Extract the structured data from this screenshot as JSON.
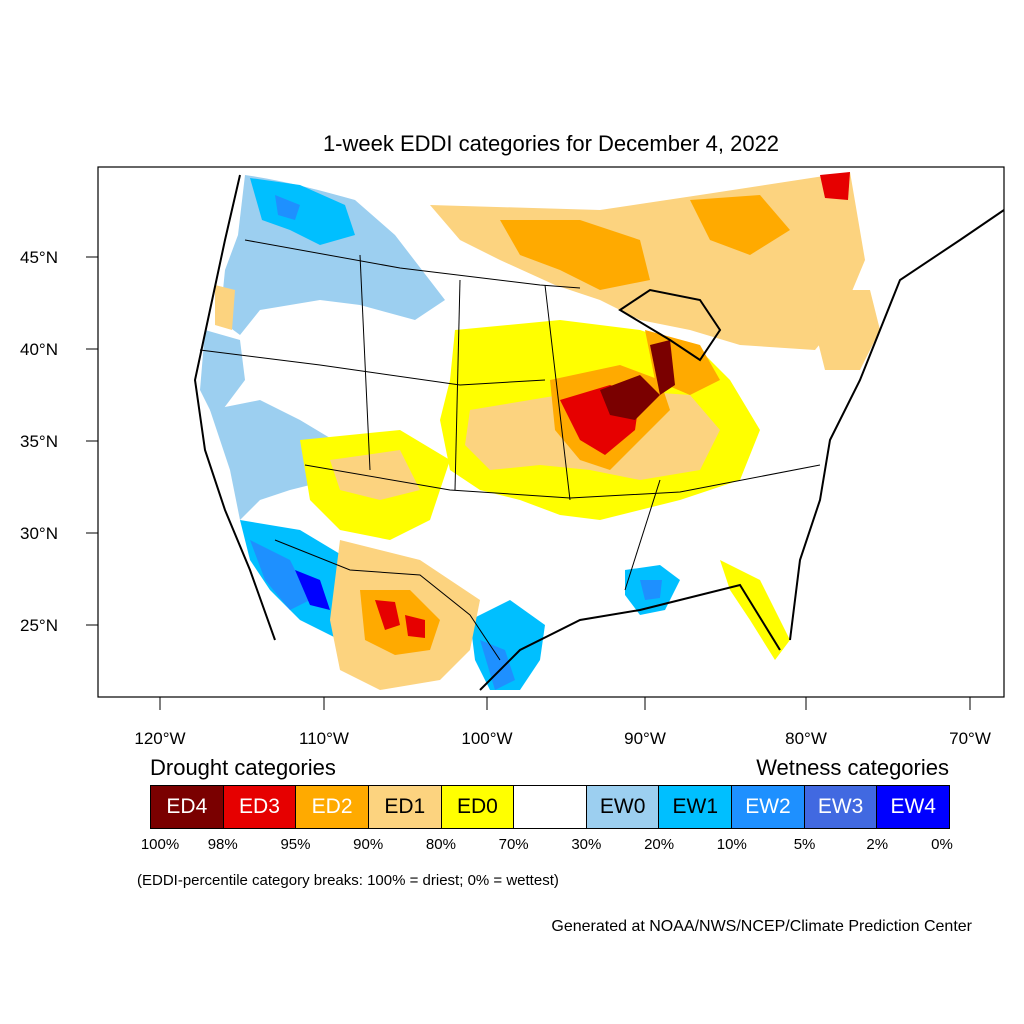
{
  "title": "1-week EDDI categories for December 4, 2022",
  "axes": {
    "lat_labels": [
      "45°N",
      "40°N",
      "35°N",
      "30°N",
      "25°N"
    ],
    "lon_labels": [
      "120°W",
      "110°W",
      "100°W",
      "90°W",
      "80°W",
      "70°W"
    ]
  },
  "legend": {
    "drought_heading": "Drought categories",
    "wetness_heading": "Wetness categories",
    "categories": [
      {
        "label": "ED4",
        "color": "#7a0000",
        "text_color": "#ffffff"
      },
      {
        "label": "ED3",
        "color": "#e60000",
        "text_color": "#ffffff"
      },
      {
        "label": "ED2",
        "color": "#ffaa00",
        "text_color": "#ffffff"
      },
      {
        "label": "ED1",
        "color": "#fcd37f",
        "text_color": "#000000"
      },
      {
        "label": "ED0",
        "color": "#ffff00",
        "text_color": "#000000"
      },
      {
        "label": "",
        "color": "#ffffff",
        "text_color": "#000000"
      },
      {
        "label": "EW0",
        "color": "#9ccff0",
        "text_color": "#000000"
      },
      {
        "label": "EW1",
        "color": "#00bfff",
        "text_color": "#000000"
      },
      {
        "label": "EW2",
        "color": "#1e90ff",
        "text_color": "#ffffff"
      },
      {
        "label": "EW3",
        "color": "#4169e1",
        "text_color": "#ffffff"
      },
      {
        "label": "EW4",
        "color": "#0000ff",
        "text_color": "#ffffff"
      }
    ],
    "breaks": [
      "100%",
      "98%",
      "95%",
      "90%",
      "80%",
      "70%",
      "30%",
      "20%",
      "10%",
      "5%",
      "2%",
      "0%"
    ]
  },
  "note": "(EDDI-percentile category breaks: 100% = driest; 0% = wettest)",
  "credit": "Generated at NOAA/NWS/NCEP/Climate Prediction Center"
}
